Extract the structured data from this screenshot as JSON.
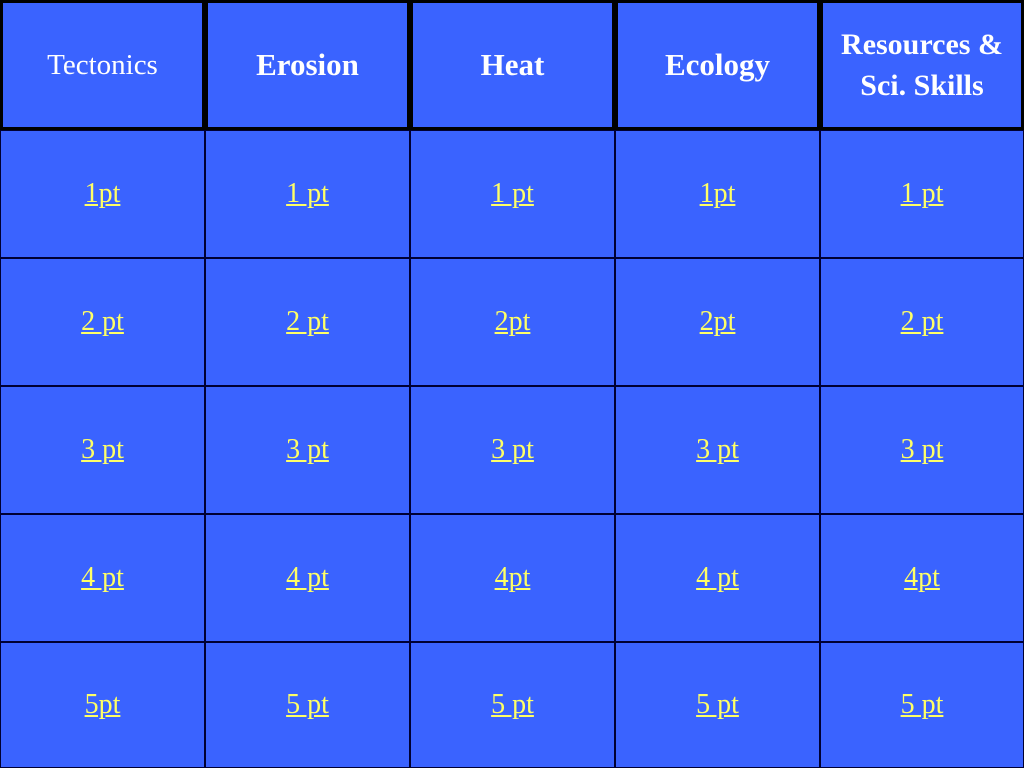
{
  "colors": {
    "board": "#3a63ff",
    "grid_lines": "#000000",
    "category_text": "#ffffff",
    "point_text": "#ffff66"
  },
  "categories": [
    {
      "label": "Tectonics"
    },
    {
      "label": "Erosion"
    },
    {
      "label": "Heat"
    },
    {
      "label": "Ecology"
    },
    {
      "label": "Resources & Sci. Skills"
    }
  ],
  "rows": [
    [
      "1pt",
      "1 pt",
      "1 pt",
      "1pt",
      "1 pt"
    ],
    [
      "2 pt",
      "2 pt",
      "2pt",
      "2pt",
      "2 pt"
    ],
    [
      "3 pt",
      "3 pt",
      "3 pt",
      "3 pt",
      "3 pt"
    ],
    [
      "4 pt",
      "4 pt",
      "4pt",
      "4 pt",
      "4pt"
    ],
    [
      "5pt",
      "5 pt",
      "5 pt",
      "5 pt",
      "5 pt"
    ]
  ]
}
